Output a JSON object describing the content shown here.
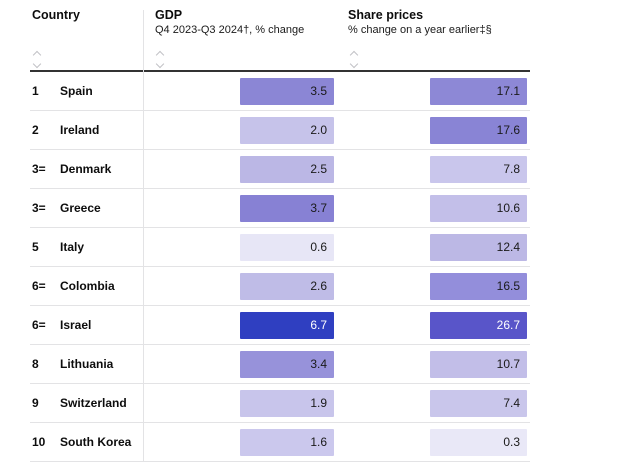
{
  "table": {
    "columns": [
      {
        "label": "Country",
        "sublabel": ""
      },
      {
        "label": "GDP",
        "sublabel": "Q4 2023-Q3 2024†, % change"
      },
      {
        "label": "Share prices",
        "sublabel": "% change on a year earlier‡§"
      }
    ],
    "rows": [
      {
        "rank": "1",
        "country": "Spain",
        "gdp": "3.5",
        "gdp_bg": "#8b86d5",
        "gdp_fg": "#1a1a1a",
        "share": "17.1",
        "share_bg": "#8d88d6",
        "share_fg": "#1a1a1a"
      },
      {
        "rank": "2",
        "country": "Ireland",
        "gdp": "2.0",
        "gdp_bg": "#c6c3ea",
        "gdp_fg": "#1a1a1a",
        "share": "17.6",
        "share_bg": "#8984d5",
        "share_fg": "#1a1a1a"
      },
      {
        "rank": "3=",
        "country": "Denmark",
        "gdp": "2.5",
        "gdp_bg": "#bbb7e5",
        "gdp_fg": "#1a1a1a",
        "share": "7.8",
        "share_bg": "#c9c6ec",
        "share_fg": "#1a1a1a"
      },
      {
        "rank": "3=",
        "country": "Greece",
        "gdp": "3.7",
        "gdp_bg": "#8781d4",
        "gdp_fg": "#1a1a1a",
        "share": "10.6",
        "share_bg": "#c3bfe9",
        "share_fg": "#1a1a1a"
      },
      {
        "rank": "5",
        "country": "Italy",
        "gdp": "0.6",
        "gdp_bg": "#e7e6f6",
        "gdp_fg": "#1a1a1a",
        "share": "12.4",
        "share_bg": "#bcb8e5",
        "share_fg": "#1a1a1a"
      },
      {
        "rank": "6=",
        "country": "Colombia",
        "gdp": "2.6",
        "gdp_bg": "#bfbce7",
        "gdp_fg": "#1a1a1a",
        "share": "16.5",
        "share_bg": "#938edb",
        "share_fg": "#1a1a1a"
      },
      {
        "rank": "6=",
        "country": "Israel",
        "gdp": "6.7",
        "gdp_bg": "#2f3fc1",
        "gdp_fg": "#ffffff",
        "share": "26.7",
        "share_bg": "#5955c9",
        "share_fg": "#ffffff"
      },
      {
        "rank": "8",
        "country": "Lithuania",
        "gdp": "3.4",
        "gdp_bg": "#9792da",
        "gdp_fg": "#1a1a1a",
        "share": "10.7",
        "share_bg": "#c2bee8",
        "share_fg": "#1a1a1a"
      },
      {
        "rank": "9",
        "country": "Switzerland",
        "gdp": "1.9",
        "gdp_bg": "#c8c5eb",
        "gdp_fg": "#1a1a1a",
        "share": "7.4",
        "share_bg": "#c9c6eb",
        "share_fg": "#1a1a1a"
      },
      {
        "rank": "10",
        "country": "South Korea",
        "gdp": "1.6",
        "gdp_bg": "#cbc8ed",
        "gdp_fg": "#1a1a1a",
        "share": "0.3",
        "share_bg": "#e9e8f7",
        "share_fg": "#1a1a1a"
      }
    ]
  },
  "icons": {
    "sort": "sort-chevrons"
  },
  "colors": {
    "header_rule": "#333333",
    "row_divider": "#e3e3e5",
    "accent_dark": "#2f3fc1",
    "accent_light": "#e9e8f7"
  },
  "chart_data": {
    "type": "table",
    "title": "",
    "categories": [
      "Spain",
      "Ireland",
      "Denmark",
      "Greece",
      "Italy",
      "Colombia",
      "Israel",
      "Lithuania",
      "Switzerland",
      "South Korea"
    ],
    "ranks": [
      "1",
      "2",
      "3=",
      "3=",
      "5",
      "6=",
      "6=",
      "8",
      "9",
      "10"
    ],
    "series": [
      {
        "name": "GDP, Q4 2023-Q3 2024†, % change",
        "values": [
          3.5,
          2.0,
          2.5,
          3.7,
          0.6,
          2.6,
          6.7,
          3.4,
          1.9,
          1.6
        ]
      },
      {
        "name": "Share prices, % change on a year earlier‡§",
        "values": [
          17.1,
          17.6,
          7.8,
          10.6,
          12.4,
          16.5,
          26.7,
          10.7,
          7.4,
          0.3
        ]
      }
    ],
    "layout": {
      "heat_shading": true,
      "sortable_columns": true,
      "legend": "none"
    }
  }
}
